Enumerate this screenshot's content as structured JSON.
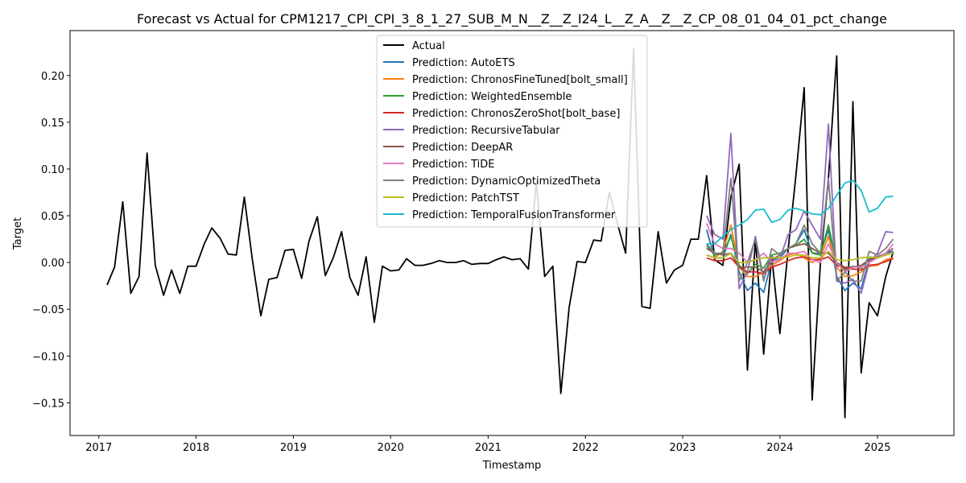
{
  "chart_data": {
    "type": "line",
    "title": "Forecast vs Actual for CPM1217_CPI_CPI_3_8_1_27_SUB_M_N__Z__Z_I24_L__Z_A__Z__Z_CP_08_01_04_01_pct_change",
    "xlabel": "Timestamp",
    "ylabel": "Target",
    "xlim": [
      "2016-09-15",
      "2025-10-15"
    ],
    "ylim": [
      -0.185,
      0.248
    ],
    "x_ticks": [
      "2017",
      "2018",
      "2019",
      "2020",
      "2021",
      "2022",
      "2023",
      "2024",
      "2025"
    ],
    "y_ticks": [
      "−0.15",
      "−0.10",
      "−0.05",
      "0.00",
      "0.05",
      "0.10",
      "0.15",
      "0.20"
    ],
    "y_tick_values": [
      -0.15,
      -0.1,
      -0.05,
      0.0,
      0.05,
      0.1,
      0.15,
      0.2
    ],
    "grid": false,
    "legend_position": "top-center",
    "actual": {
      "name": "Actual",
      "color": "#000000",
      "start": "2017-02",
      "values": [
        -0.024,
        -0.005,
        0.065,
        -0.033,
        -0.015,
        0.117,
        -0.003,
        -0.035,
        -0.008,
        -0.033,
        -0.004,
        -0.004,
        0.02,
        0.037,
        0.026,
        0.009,
        0.008,
        0.07,
        0.001,
        -0.057,
        -0.018,
        -0.016,
        0.013,
        0.014,
        -0.017,
        0.023,
        0.049,
        -0.014,
        0.006,
        0.033,
        -0.016,
        -0.035,
        0.006,
        -0.064,
        -0.004,
        -0.009,
        -0.008,
        0.004,
        -0.003,
        -0.003,
        -0.001,
        0.002,
        0.0,
        0.0,
        0.002,
        -0.002,
        -0.001,
        -0.001,
        0.003,
        0.006,
        0.003,
        0.004,
        -0.007,
        0.086,
        -0.015,
        -0.004,
        -0.14,
        -0.048,
        0.001,
        0.0,
        0.024,
        0.023,
        0.075,
        0.042,
        0.01,
        0.229,
        -0.047,
        -0.049,
        0.033,
        -0.022,
        -0.008,
        -0.003,
        0.025,
        0.025,
        0.093,
        0.003,
        -0.003,
        0.07,
        0.105,
        -0.115,
        0.025,
        -0.098,
        0.007,
        -0.076,
        0.014,
        0.093,
        0.187,
        -0.147,
        0.0,
        0.09,
        0.221,
        -0.166,
        0.172,
        -0.118,
        -0.043,
        -0.057,
        -0.015,
        0.011
      ]
    },
    "predictions_start": "2023-04",
    "series": [
      {
        "name": "Prediction: AutoETS",
        "color": "#1f77b4",
        "values": [
          0.035,
          0.005,
          0.005,
          0.03,
          -0.01,
          -0.03,
          -0.022,
          -0.032,
          0.002,
          0.005,
          0.015,
          0.02,
          0.035,
          0.01,
          0.01,
          0.035,
          -0.015,
          -0.03,
          -0.022,
          -0.028,
          0.003,
          0.005,
          0.01,
          0.012
        ]
      },
      {
        "name": "Prediction: ChronosFineTuned[bolt_small]",
        "color": "#ff7f0e",
        "values": [
          0.008,
          0.005,
          0.012,
          0.04,
          -0.005,
          -0.015,
          -0.015,
          -0.01,
          -0.003,
          0.002,
          0.008,
          0.01,
          0.005,
          0.0,
          0.005,
          0.028,
          -0.005,
          -0.015,
          -0.014,
          -0.01,
          -0.004,
          -0.003,
          0.003,
          0.005
        ]
      },
      {
        "name": "Prediction: WeightedEnsemble",
        "color": "#2ca02c",
        "values": [
          0.018,
          0.008,
          0.01,
          0.028,
          -0.003,
          -0.012,
          -0.002,
          -0.006,
          0.008,
          0.01,
          0.015,
          0.018,
          0.025,
          0.01,
          0.008,
          0.04,
          -0.002,
          -0.008,
          -0.004,
          -0.006,
          0.004,
          0.006,
          0.008,
          0.01
        ]
      },
      {
        "name": "Prediction: ChronosZeroShot[bolt_base]",
        "color": "#d62728",
        "values": [
          0.005,
          0.002,
          0.002,
          0.005,
          -0.005,
          -0.01,
          -0.01,
          -0.012,
          -0.005,
          -0.002,
          0.002,
          0.005,
          0.006,
          0.003,
          0.003,
          0.006,
          -0.003,
          -0.006,
          -0.007,
          -0.008,
          -0.003,
          -0.002,
          0.001,
          0.004
        ]
      },
      {
        "name": "Prediction: RecursiveTabular",
        "color": "#9467bd",
        "values": [
          0.05,
          0.03,
          0.025,
          0.138,
          -0.028,
          -0.01,
          0.028,
          -0.018,
          0.006,
          0.004,
          0.03,
          0.035,
          0.055,
          0.04,
          0.025,
          0.148,
          -0.02,
          -0.022,
          -0.018,
          -0.033,
          0.0,
          0.01,
          0.033,
          0.032
        ]
      },
      {
        "name": "Prediction: DeepAR",
        "color": "#8c564b",
        "values": [
          0.015,
          0.01,
          0.008,
          0.01,
          -0.005,
          -0.005,
          -0.005,
          -0.01,
          0.003,
          0.008,
          0.015,
          0.018,
          0.02,
          0.015,
          0.01,
          0.01,
          0.0,
          -0.005,
          -0.005,
          -0.003,
          0.003,
          0.006,
          0.01,
          0.015
        ]
      },
      {
        "name": "Prediction: TiDE",
        "color": "#e377c2",
        "values": [
          0.042,
          0.02,
          0.015,
          0.015,
          0.01,
          0.0,
          0.003,
          0.01,
          0.0,
          0.003,
          0.01,
          0.01,
          0.012,
          0.003,
          0.0,
          0.02,
          0.0,
          -0.01,
          -0.005,
          -0.005,
          0.0,
          0.005,
          0.01,
          0.02
        ]
      },
      {
        "name": "Prediction: DynamicOptimizedTheta",
        "color": "#7f7f7f",
        "values": [
          0.02,
          0.01,
          0.01,
          0.09,
          -0.02,
          0.0,
          0.025,
          -0.02,
          0.015,
          0.008,
          0.015,
          0.02,
          0.04,
          0.02,
          0.01,
          0.09,
          -0.02,
          -0.01,
          -0.02,
          -0.02,
          0.012,
          0.008,
          0.015,
          0.025
        ]
      },
      {
        "name": "Prediction: PatchTST",
        "color": "#bcbd22",
        "values": [
          0.008,
          0.005,
          0.005,
          0.01,
          0.0,
          0.0,
          0.003,
          0.005,
          0.005,
          0.005,
          0.006,
          0.008,
          0.008,
          0.005,
          0.005,
          0.012,
          0.003,
          0.002,
          0.003,
          0.005,
          0.006,
          0.005,
          0.008,
          0.01
        ]
      },
      {
        "name": "Prediction: TemporalFusionTransformer",
        "color": "#17becf",
        "values": [
          0.02,
          0.02,
          0.028,
          0.035,
          0.04,
          0.046,
          0.056,
          0.057,
          0.043,
          0.046,
          0.056,
          0.058,
          0.055,
          0.052,
          0.051,
          0.058,
          0.072,
          0.085,
          0.088,
          0.077,
          0.054,
          0.058,
          0.07,
          0.071
        ]
      }
    ]
  }
}
